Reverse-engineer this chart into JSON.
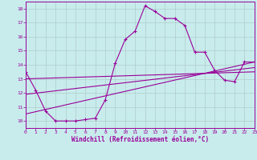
{
  "xlabel": "Windchill (Refroidissement éolien,°C)",
  "background_color": "#c8ecec",
  "grid_color": "#b0cccc",
  "line_color": "#990099",
  "xlim": [
    0,
    23
  ],
  "ylim": [
    9.5,
    18.5
  ],
  "xticks": [
    0,
    1,
    2,
    3,
    4,
    5,
    6,
    7,
    8,
    9,
    10,
    11,
    12,
    13,
    14,
    15,
    16,
    17,
    18,
    19,
    20,
    21,
    22,
    23
  ],
  "yticks": [
    10,
    11,
    12,
    13,
    14,
    15,
    16,
    17,
    18
  ],
  "curve1_x": [
    0,
    1,
    2,
    3,
    4,
    5,
    6,
    7,
    8,
    9,
    10,
    11,
    12,
    13,
    14,
    15,
    16,
    17,
    18,
    19,
    20,
    21,
    22,
    23
  ],
  "curve1_y": [
    13.5,
    12.2,
    10.7,
    10.0,
    10.0,
    10.0,
    10.1,
    10.2,
    11.5,
    14.1,
    15.8,
    16.4,
    18.2,
    17.8,
    17.3,
    17.3,
    16.8,
    14.9,
    14.9,
    13.6,
    12.9,
    12.8,
    14.2,
    14.2
  ],
  "line1_x": [
    0,
    23
  ],
  "line1_y": [
    13.0,
    13.5
  ],
  "line2_x": [
    0,
    23
  ],
  "line2_y": [
    11.9,
    13.8
  ],
  "line3_x": [
    0,
    23
  ],
  "line3_y": [
    10.5,
    14.2
  ]
}
